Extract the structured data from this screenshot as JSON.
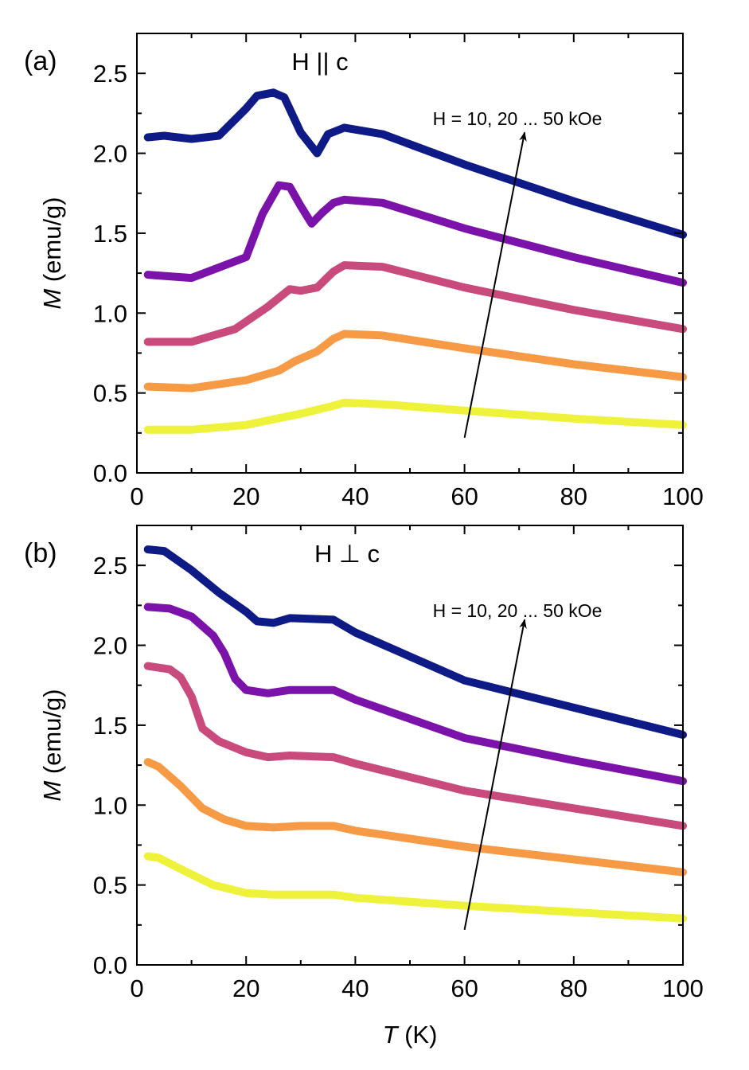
{
  "chart_data": [
    {
      "type": "line",
      "panel_label": "(a)",
      "orientation_label": "H || c",
      "field_annotation": "H = 10, 20 ... 50 kOe",
      "xlabel": "",
      "ylabel_italic": "M",
      "ylabel_unit": " (emu/g)",
      "xlim": [
        0,
        100
      ],
      "ylim": [
        0,
        2.75
      ],
      "xticks": [
        0,
        20,
        40,
        60,
        80,
        100
      ],
      "xtick_labels": [
        "0",
        "20",
        "40",
        "60",
        "80",
        "100"
      ],
      "yticks": [
        0,
        0.5,
        1.0,
        1.5,
        2.0,
        2.5
      ],
      "ytick_labels": [
        "0.0",
        "0.5",
        "1.0",
        "1.5",
        "2.0",
        "2.5"
      ],
      "grid": false,
      "legend": "none",
      "arrow": {
        "from": [
          60,
          0.22
        ],
        "to": [
          71,
          2.13
        ]
      },
      "series": [
        {
          "color": "#eef23a",
          "x": [
            2,
            10,
            20,
            30,
            36,
            38,
            45,
            60,
            80,
            100
          ],
          "y": [
            0.27,
            0.27,
            0.3,
            0.37,
            0.42,
            0.44,
            0.43,
            0.39,
            0.34,
            0.3
          ]
        },
        {
          "color": "#f79a45",
          "x": [
            2,
            10,
            20,
            26,
            29,
            33,
            36,
            38,
            45,
            60,
            80,
            100
          ],
          "y": [
            0.54,
            0.53,
            0.58,
            0.64,
            0.7,
            0.76,
            0.84,
            0.87,
            0.86,
            0.78,
            0.68,
            0.6
          ]
        },
        {
          "color": "#c94a7d",
          "x": [
            2,
            10,
            18,
            24,
            28,
            30,
            33,
            36,
            38,
            45,
            60,
            80,
            100
          ],
          "y": [
            0.82,
            0.82,
            0.9,
            1.04,
            1.15,
            1.14,
            1.16,
            1.26,
            1.3,
            1.29,
            1.16,
            1.02,
            0.9
          ]
        },
        {
          "color": "#7b12a9",
          "x": [
            2,
            10,
            20,
            23,
            26,
            28,
            30,
            32,
            34,
            36,
            38,
            45,
            60,
            80,
            100
          ],
          "y": [
            1.24,
            1.22,
            1.35,
            1.62,
            1.8,
            1.79,
            1.67,
            1.56,
            1.63,
            1.69,
            1.71,
            1.69,
            1.53,
            1.35,
            1.19
          ]
        },
        {
          "color": "#0e1a86",
          "x": [
            2,
            5,
            10,
            15,
            20,
            22,
            25,
            27,
            30,
            33,
            35,
            38,
            45,
            60,
            80,
            100
          ],
          "y": [
            2.1,
            2.11,
            2.09,
            2.11,
            2.28,
            2.36,
            2.38,
            2.35,
            2.13,
            2.0,
            2.12,
            2.16,
            2.12,
            1.93,
            1.7,
            1.49
          ]
        }
      ]
    },
    {
      "type": "line",
      "panel_label": "(b)",
      "orientation_label": "H ⊥ c",
      "field_annotation": "H = 10, 20 ... 50 kOe",
      "xlabel_italic": "T",
      "xlabel_unit": " (K)",
      "ylabel_italic": "M",
      "ylabel_unit": " (emu/g)",
      "xlim": [
        0,
        100
      ],
      "ylim": [
        0,
        2.75
      ],
      "xticks": [
        0,
        20,
        40,
        60,
        80,
        100
      ],
      "xtick_labels": [
        "0",
        "20",
        "40",
        "60",
        "80",
        "100"
      ],
      "yticks": [
        0,
        0.5,
        1.0,
        1.5,
        2.0,
        2.5
      ],
      "ytick_labels": [
        "0.0",
        "0.5",
        "1.0",
        "1.5",
        "2.0",
        "2.5"
      ],
      "grid": false,
      "legend": "none",
      "arrow": {
        "from": [
          60,
          0.22
        ],
        "to": [
          71,
          2.16
        ]
      },
      "series": [
        {
          "color": "#eef23a",
          "x": [
            2,
            4,
            8,
            14,
            20,
            25,
            30,
            36,
            40,
            60,
            80,
            100
          ],
          "y": [
            0.68,
            0.67,
            0.6,
            0.5,
            0.45,
            0.44,
            0.44,
            0.44,
            0.42,
            0.37,
            0.33,
            0.29
          ]
        },
        {
          "color": "#f79a45",
          "x": [
            2,
            4,
            8,
            12,
            16,
            20,
            25,
            30,
            36,
            40,
            60,
            80,
            100
          ],
          "y": [
            1.27,
            1.24,
            1.12,
            0.98,
            0.91,
            0.87,
            0.86,
            0.87,
            0.87,
            0.84,
            0.74,
            0.66,
            0.58
          ]
        },
        {
          "color": "#c94a7d",
          "x": [
            2,
            6,
            8,
            10,
            12,
            15,
            20,
            24,
            28,
            36,
            40,
            60,
            80,
            100
          ],
          "y": [
            1.87,
            1.85,
            1.8,
            1.68,
            1.48,
            1.4,
            1.33,
            1.3,
            1.31,
            1.3,
            1.26,
            1.09,
            0.98,
            0.87
          ]
        },
        {
          "color": "#7b12a9",
          "x": [
            2,
            6,
            10,
            14,
            16,
            18,
            20,
            24,
            28,
            36,
            40,
            60,
            80,
            100
          ],
          "y": [
            2.24,
            2.23,
            2.18,
            2.06,
            1.95,
            1.79,
            1.72,
            1.7,
            1.72,
            1.72,
            1.66,
            1.42,
            1.28,
            1.15
          ]
        },
        {
          "color": "#0e1a86",
          "x": [
            2,
            5,
            10,
            15,
            20,
            22,
            25,
            28,
            36,
            40,
            60,
            80,
            100
          ],
          "y": [
            2.6,
            2.59,
            2.47,
            2.33,
            2.21,
            2.15,
            2.14,
            2.17,
            2.16,
            2.08,
            1.78,
            1.61,
            1.44
          ]
        }
      ]
    }
  ]
}
